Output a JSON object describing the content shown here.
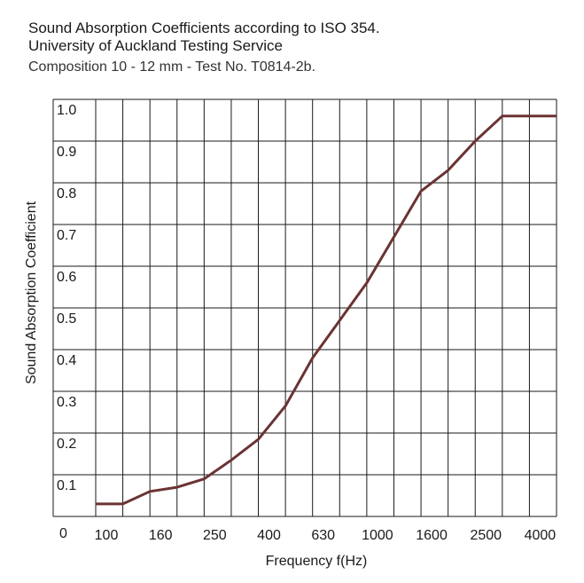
{
  "title_line1": "Sound Absorption Coefficients according to ISO 354.",
  "title_line2": "University of Auckland Testing Service",
  "subtitle": "Composition 10 - 12 mm - Test No. T0814-2b.",
  "chart_data": {
    "type": "line",
    "xlabel": "Frequency f(Hz)",
    "ylabel": "Sound Absorption Coefficient",
    "ylim": [
      0,
      1.0
    ],
    "y_ticks": [
      "0",
      "0.1",
      "0.2",
      "0.3",
      "0.4",
      "0.5",
      "0.6",
      "0.7",
      "0.8",
      "0.9",
      "1.0"
    ],
    "x_tick_labels": [
      "100",
      "160",
      "250",
      "400",
      "630",
      "1000",
      "1600",
      "2500",
      "4000"
    ],
    "x": [
      "100",
      "125",
      "160",
      "200",
      "250",
      "315",
      "400",
      "500",
      "630",
      "800",
      "1000",
      "1250",
      "1600",
      "2000",
      "2500",
      "3150",
      "4000",
      "5000"
    ],
    "values": [
      0.03,
      0.03,
      0.06,
      0.07,
      0.09,
      0.135,
      0.185,
      0.265,
      0.38,
      0.47,
      0.56,
      0.67,
      0.78,
      0.83,
      0.9,
      0.96,
      0.96,
      0.96
    ],
    "grid": true,
    "line_color": "#6b3333",
    "grid_color": "#1a1a1a"
  }
}
